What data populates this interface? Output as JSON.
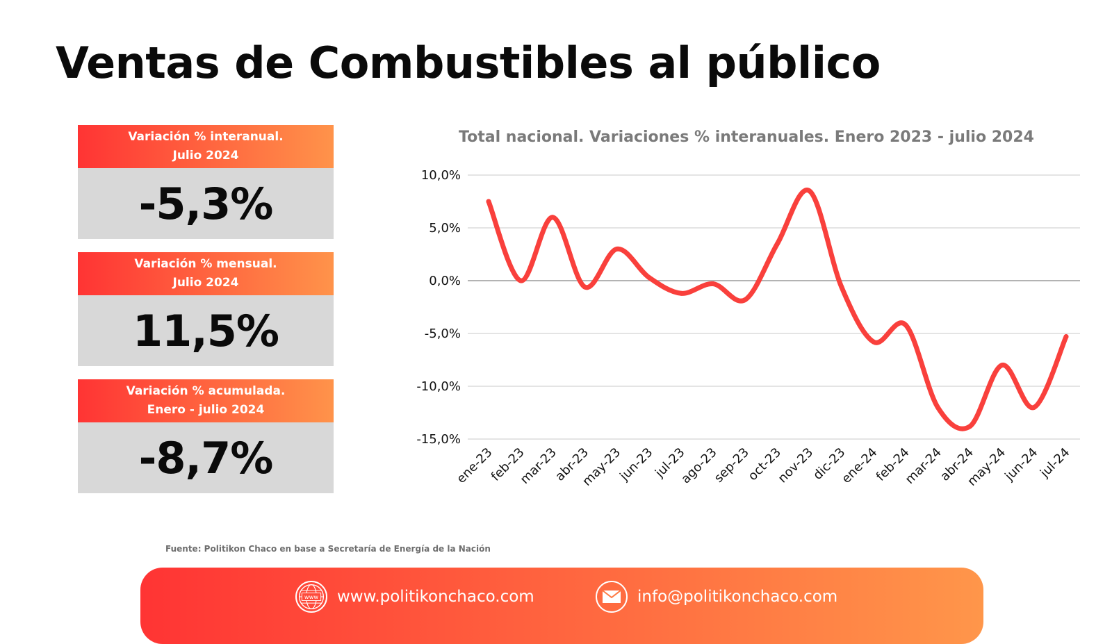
{
  "title": "Ventas de Combustibles al público",
  "stats": [
    {
      "label_line1": "Variación % interanual.",
      "label_line2": "Julio 2024",
      "value": "-5,3%"
    },
    {
      "label_line1": "Variación % mensual.",
      "label_line2": "Julio 2024",
      "value": "11,5%"
    },
    {
      "label_line1": "Variación % acumulada.",
      "label_line2": "Enero - julio 2024",
      "value": "-8,7%"
    }
  ],
  "source": "Fuente: Politikon Chaco en base a Secretaría de Energía de la Nación",
  "footer": {
    "web": "www.politikonchaco.com",
    "web_icon_text": "www",
    "email": "info@politikonchaco.com"
  },
  "colors": {
    "accent_red": "#ff3b3b",
    "accent_orange": "#ff934a",
    "line": "#f9403c",
    "card_gray": "#d8d8d8"
  },
  "icons": [
    "globe-icon",
    "mail-icon"
  ],
  "chart_data": {
    "type": "line",
    "title": "Total nacional. Variaciones % interanuales. Enero 2023 - julio 2024",
    "categories": [
      "ene-23",
      "feb-23",
      "mar-23",
      "abr-23",
      "may-23",
      "jun-23",
      "jul-23",
      "ago-23",
      "sep-23",
      "oct-23",
      "nov-23",
      "dic-23",
      "ene-24",
      "feb-24",
      "mar-24",
      "abr-24",
      "may-24",
      "jun-24",
      "jul-24"
    ],
    "series": [
      {
        "values": [
          7.5,
          0.0,
          6.0,
          -0.6,
          3.0,
          0.3,
          -1.2,
          -0.3,
          -1.8,
          3.5,
          8.5,
          -0.6,
          -5.8,
          -4.2,
          -12.0,
          -13.8,
          -8.0,
          -12.0,
          -5.3
        ]
      }
    ],
    "yticks": [
      10,
      5,
      0,
      -5,
      -10,
      -15
    ],
    "ytick_labels": [
      "10,0%",
      "5,0%",
      "0,0%",
      "-5,0%",
      "-10,0%",
      "-15,0%"
    ],
    "ylim": [
      -15,
      10
    ],
    "grid": true,
    "legend": false
  }
}
